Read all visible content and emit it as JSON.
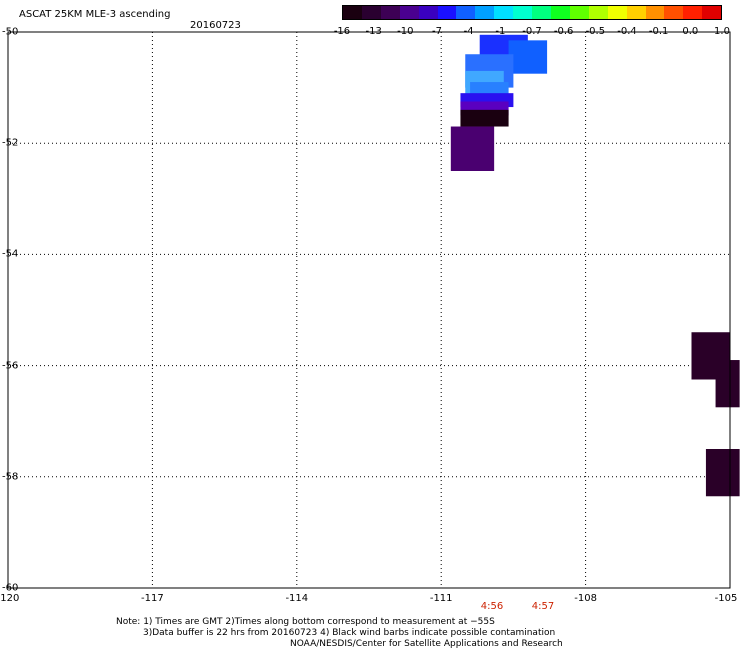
{
  "header": {
    "title": "ASCAT 25KM MLE-3 ascending",
    "date": "20160723"
  },
  "colorbar": {
    "tick_labels": [
      "-16",
      "-13",
      "-10",
      "-7",
      "-4",
      "-1",
      "-0.7",
      "-0.6",
      "-0.5",
      "-0.4",
      "-0.1",
      "0.0",
      "1.0"
    ],
    "colors": [
      "#1a0010",
      "#2a0030",
      "#3d0055",
      "#4a0090",
      "#3a00c0",
      "#1a10ff",
      "#1060ff",
      "#00a0ff",
      "#00e0ff",
      "#00ffd0",
      "#00ff80",
      "#10ff20",
      "#60ff00",
      "#b0ff00",
      "#f0ff00",
      "#ffd000",
      "#ff9000",
      "#ff5000",
      "#ff2000",
      "#e00000"
    ]
  },
  "chart_data": {
    "type": "heatmap",
    "title": "ASCAT 25KM MLE-3 ascending",
    "subtitle": "20160723",
    "xlim": [
      -120,
      -105
    ],
    "ylim": [
      -60,
      -50
    ],
    "x_ticks": [
      "-120",
      "-117",
      "-114",
      "-111",
      "-108",
      "-105"
    ],
    "y_ticks": [
      "-50",
      "-52",
      "-54",
      "-56",
      "-58",
      "-60"
    ],
    "grid": true,
    "colorbar": [
      "-16",
      "-13",
      "-10",
      "-7",
      "-4",
      "-1",
      "-0.7",
      "-0.6",
      "-0.5",
      "-0.4",
      "-0.1",
      "0.0",
      "1.0"
    ],
    "cells": [
      {
        "lon": [
          -110.2,
          -109.2
        ],
        "lat": [
          -50.05,
          -50.65
        ],
        "value": -6,
        "color": "#1a30ff"
      },
      {
        "lon": [
          -109.6,
          -108.8
        ],
        "lat": [
          -50.15,
          -50.75
        ],
        "value": -4,
        "color": "#1060ff"
      },
      {
        "lon": [
          -110.5,
          -109.5
        ],
        "lat": [
          -50.4,
          -51.0
        ],
        "value": -5,
        "color": "#2a70ff"
      },
      {
        "lon": [
          -110.5,
          -109.7
        ],
        "lat": [
          -50.7,
          -51.2
        ],
        "value": -3,
        "color": "#40a8ff"
      },
      {
        "lon": [
          -110.4,
          -109.6
        ],
        "lat": [
          -50.9,
          -51.25
        ],
        "value": -3,
        "color": "#2880ff"
      },
      {
        "lon": [
          -110.6,
          -109.5
        ],
        "lat": [
          -51.1,
          -51.35
        ],
        "value": -9,
        "color": "#2a10f0"
      },
      {
        "lon": [
          -110.6,
          -109.6
        ],
        "lat": [
          -51.25,
          -51.5
        ],
        "value": -11,
        "color": "#5a00c0"
      },
      {
        "lon": [
          -110.6,
          -109.6
        ],
        "lat": [
          -51.4,
          -51.7
        ],
        "value": -16,
        "color": "#1a0010"
      },
      {
        "lon": [
          -110.8,
          -109.9
        ],
        "lat": [
          -51.7,
          -52.5
        ],
        "value": -12,
        "color": "#4a0070"
      },
      {
        "lon": [
          -105.8,
          -105.0
        ],
        "lat": [
          -55.4,
          -56.25
        ],
        "value": -15,
        "color": "#2a0028"
      },
      {
        "lon": [
          -105.3,
          -104.8
        ],
        "lat": [
          -55.9,
          -56.75
        ],
        "value": -15,
        "color": "#2a0028"
      },
      {
        "lon": [
          -105.5,
          -104.8
        ],
        "lat": [
          -57.5,
          -58.35
        ],
        "value": -15,
        "color": "#2a0028"
      }
    ]
  },
  "footer": {
    "times": [
      "4:56",
      "4:57"
    ],
    "note_line1": "Note: 1) Times are GMT 2)Times along bottom correspond to measurement at −55S",
    "note_line2": "3)Data buffer is 22 hrs from 20160723 4) Black wind barbs indicate possible contamination",
    "note_line3": "NOAA/NESDIS/Center for Satellite Applications and Research"
  }
}
